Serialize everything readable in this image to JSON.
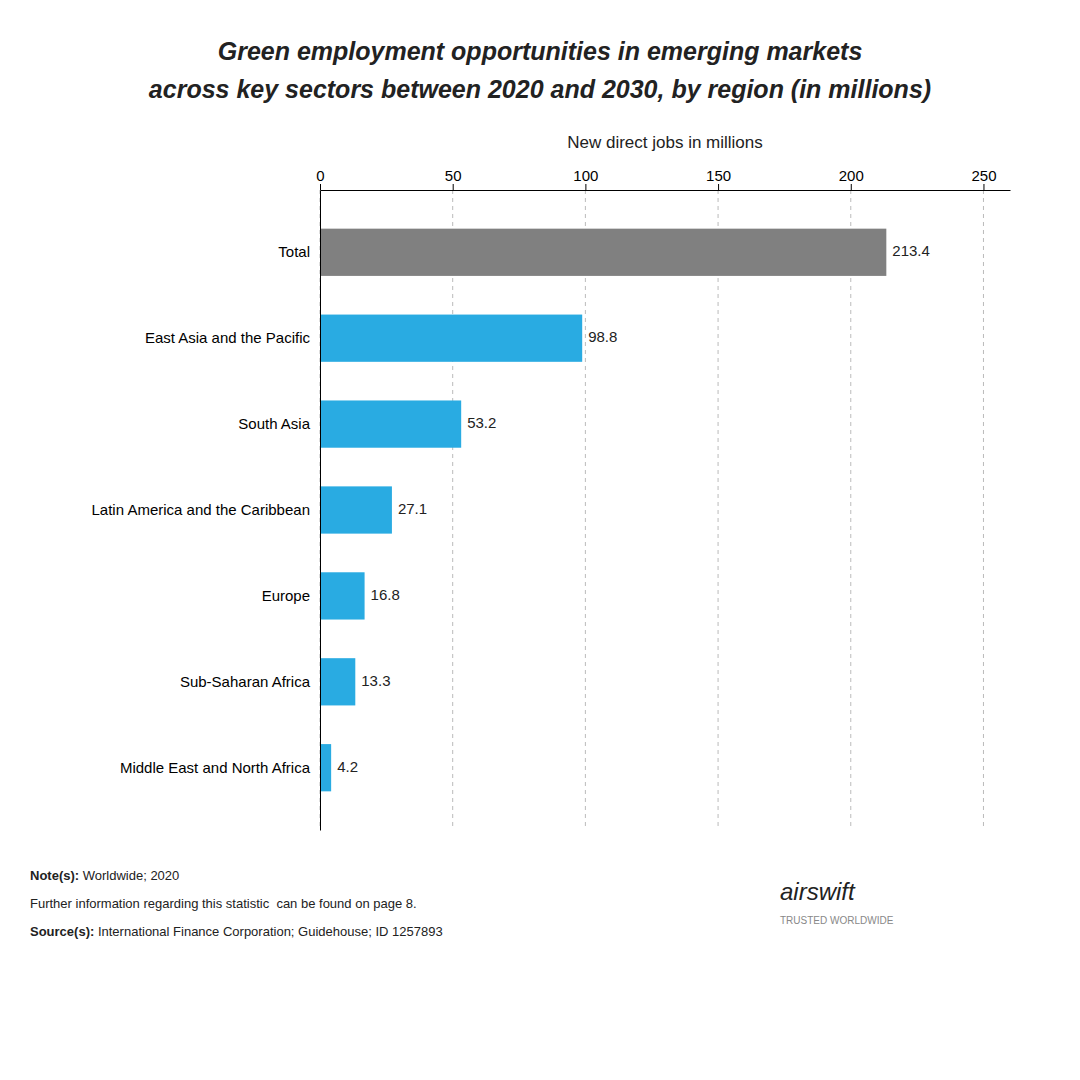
{
  "chart_data": {
    "type": "bar",
    "orientation": "horizontal",
    "title": "Green employment opportunities in emerging markets",
    "subtitle": "across key sectors between 2020 and 2030, by region (in millions)",
    "xlabel": "New direct jobs in millions",
    "categories": [
      "Total",
      "East Asia and the Pacific",
      "South Asia",
      "Latin America and the Caribbean",
      "Europe",
      "Sub-Saharan Africa",
      "Middle East and North Africa"
    ],
    "values": [
      213.4,
      98.8,
      53.2,
      27.1,
      16.8,
      13.3,
      4.2
    ],
    "colors": [
      "#808080",
      "#29ABE2",
      "#29ABE2",
      "#29ABE2",
      "#29ABE2",
      "#29ABE2",
      "#29ABE2"
    ],
    "xlim": [
      0,
      260
    ],
    "xticks": [
      0,
      50,
      100,
      150,
      200,
      250
    ],
    "grid": true,
    "data_labels": true,
    "annotations": [
      "Note(s):",
      " Worldwide; 2020",
      "Further information regarding this statistic  can be found on page 8.",
      "Source(s):",
      " International Finance Corporation; Guidehouse; ID 1257893",
      "airswift",
      "TRUSTED WORLDWIDE"
    ]
  }
}
